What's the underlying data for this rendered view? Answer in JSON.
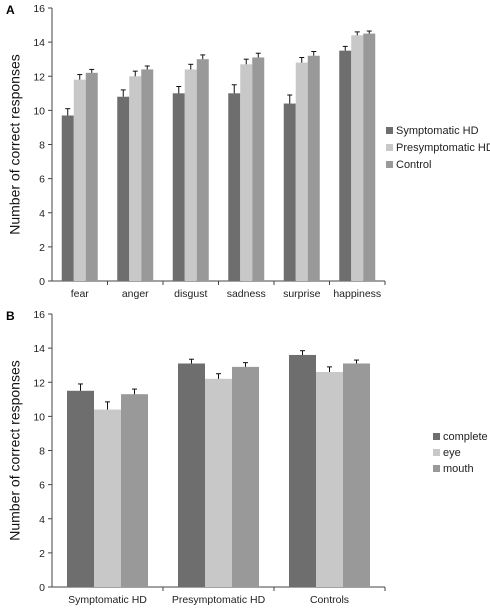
{
  "chart_data": [
    {
      "type": "bar",
      "panel_label": "A",
      "ylabel": "Number of correct responses",
      "xlabel": "",
      "ylim": [
        0,
        16
      ],
      "yticks": [
        0,
        2,
        4,
        6,
        8,
        10,
        12,
        14,
        16
      ],
      "categories": [
        "fear",
        "anger",
        "disgust",
        "sadness",
        "surprise",
        "happiness"
      ],
      "legend_position": "right",
      "series": [
        {
          "name": "Symptomatic HD",
          "color": "#6e6e6e",
          "values": [
            9.7,
            10.8,
            11.0,
            11.0,
            10.4,
            13.5
          ],
          "errors": [
            0.4,
            0.4,
            0.4,
            0.5,
            0.5,
            0.25
          ]
        },
        {
          "name": "Presymptomatic HD",
          "color": "#c8c8c8",
          "values": [
            11.8,
            12.0,
            12.4,
            12.7,
            12.8,
            14.4
          ],
          "errors": [
            0.3,
            0.3,
            0.3,
            0.3,
            0.3,
            0.2
          ]
        },
        {
          "name": "Control",
          "color": "#999999",
          "values": [
            12.2,
            12.4,
            13.0,
            13.1,
            13.2,
            14.5
          ],
          "errors": [
            0.2,
            0.2,
            0.25,
            0.25,
            0.25,
            0.15
          ]
        }
      ]
    },
    {
      "type": "bar",
      "panel_label": "B",
      "ylabel": "Number of correct responses",
      "xlabel": "",
      "ylim": [
        0,
        16
      ],
      "yticks": [
        0,
        2,
        4,
        6,
        8,
        10,
        12,
        14,
        16
      ],
      "categories": [
        "Symptomatic HD",
        "Presymptomatic HD",
        "Controls"
      ],
      "legend_position": "right",
      "series": [
        {
          "name": "complete",
          "color": "#6e6e6e",
          "values": [
            11.5,
            13.1,
            13.6
          ],
          "errors": [
            0.4,
            0.25,
            0.25
          ]
        },
        {
          "name": "eye",
          "color": "#c8c8c8",
          "values": [
            10.4,
            12.2,
            12.6
          ],
          "errors": [
            0.45,
            0.3,
            0.3
          ]
        },
        {
          "name": "mouth",
          "color": "#999999",
          "values": [
            11.3,
            12.9,
            13.1
          ],
          "errors": [
            0.3,
            0.25,
            0.2
          ]
        }
      ]
    }
  ]
}
